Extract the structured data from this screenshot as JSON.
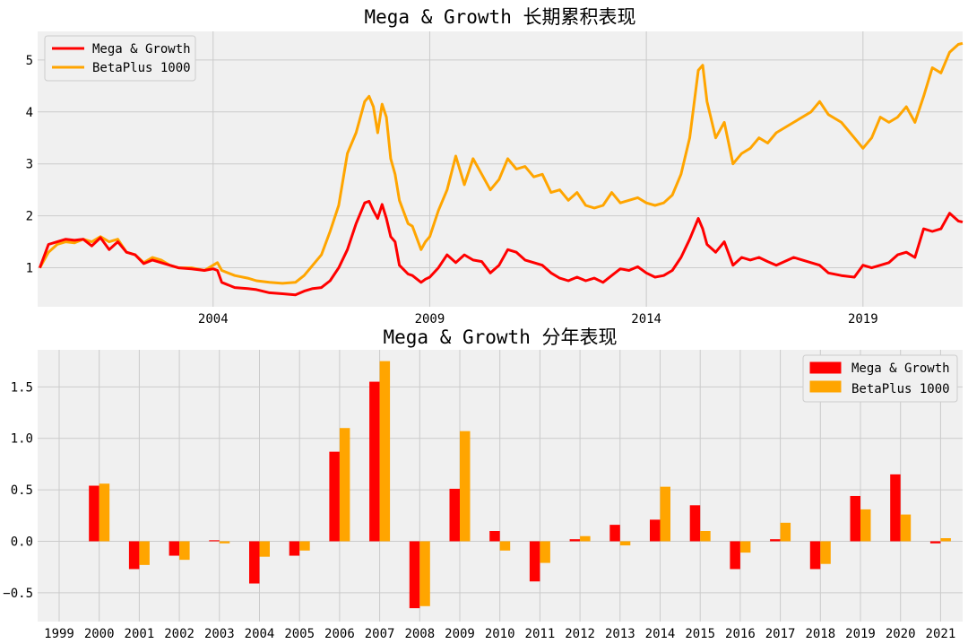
{
  "colors": {
    "mega": "#ff0000",
    "beta": "#ffa500",
    "panel": "#f0f0f0",
    "grid": "#cbcbcb"
  },
  "chart_data": [
    {
      "type": "line",
      "title": "Mega & Growth 长期累积表现",
      "xlabel": "",
      "ylabel": "",
      "xlim": [
        1999.95,
        2021.3
      ],
      "ylim": [
        0.25,
        5.55
      ],
      "xticks": [
        2004,
        2009,
        2014,
        2019
      ],
      "xtick_labels": [
        "2004",
        "2009",
        "2014",
        "2019"
      ],
      "yticks": [
        1,
        2,
        3,
        4,
        5
      ],
      "ytick_labels": [
        "1",
        "2",
        "3",
        "4",
        "5"
      ],
      "grid": true,
      "legend": "top-left",
      "series": [
        {
          "name": "Mega & Growth",
          "color": "#ff0000",
          "x": [
            2000.0,
            2000.2,
            2000.4,
            2000.6,
            2000.8,
            2001.0,
            2001.2,
            2001.4,
            2001.6,
            2001.8,
            2002.0,
            2002.2,
            2002.4,
            2002.6,
            2002.8,
            2003.0,
            2003.2,
            2003.5,
            2003.8,
            2004.0,
            2004.1,
            2004.2,
            2004.5,
            2004.8,
            2005.0,
            2005.3,
            2005.6,
            2005.9,
            2006.1,
            2006.3,
            2006.5,
            2006.7,
            2006.9,
            2007.1,
            2007.3,
            2007.5,
            2007.6,
            2007.7,
            2007.8,
            2007.9,
            2008.0,
            2008.1,
            2008.2,
            2008.3,
            2008.5,
            2008.6,
            2008.8,
            2008.9,
            2009.0,
            2009.2,
            2009.4,
            2009.6,
            2009.8,
            2010.0,
            2010.2,
            2010.4,
            2010.6,
            2010.8,
            2011.0,
            2011.2,
            2011.4,
            2011.6,
            2011.8,
            2012.0,
            2012.2,
            2012.4,
            2012.6,
            2012.8,
            2013.0,
            2013.2,
            2013.4,
            2013.6,
            2013.8,
            2014.0,
            2014.2,
            2014.4,
            2014.6,
            2014.8,
            2015.0,
            2015.2,
            2015.3,
            2015.4,
            2015.6,
            2015.8,
            2016.0,
            2016.2,
            2016.4,
            2016.6,
            2016.8,
            2017.0,
            2017.4,
            2017.8,
            2018.0,
            2018.2,
            2018.5,
            2018.8,
            2019.0,
            2019.2,
            2019.4,
            2019.6,
            2019.8,
            2020.0,
            2020.2,
            2020.4,
            2020.6,
            2020.8,
            2021.0,
            2021.2,
            2021.3
          ],
          "y": [
            1.0,
            1.45,
            1.5,
            1.55,
            1.53,
            1.55,
            1.42,
            1.58,
            1.35,
            1.5,
            1.3,
            1.25,
            1.08,
            1.15,
            1.1,
            1.05,
            1.0,
            0.98,
            0.95,
            0.98,
            0.95,
            0.72,
            0.62,
            0.6,
            0.58,
            0.52,
            0.5,
            0.48,
            0.55,
            0.6,
            0.62,
            0.75,
            1.0,
            1.35,
            1.85,
            2.25,
            2.28,
            2.1,
            1.95,
            2.22,
            1.95,
            1.6,
            1.5,
            1.05,
            0.88,
            0.85,
            0.72,
            0.78,
            0.82,
            1.0,
            1.25,
            1.1,
            1.25,
            1.15,
            1.12,
            0.9,
            1.05,
            1.35,
            1.3,
            1.15,
            1.1,
            1.05,
            0.9,
            0.8,
            0.75,
            0.82,
            0.75,
            0.8,
            0.72,
            0.85,
            0.98,
            0.95,
            1.02,
            0.9,
            0.82,
            0.85,
            0.95,
            1.2,
            1.55,
            1.95,
            1.75,
            1.45,
            1.3,
            1.5,
            1.05,
            1.2,
            1.15,
            1.2,
            1.12,
            1.05,
            1.2,
            1.1,
            1.05,
            0.9,
            0.85,
            0.82,
            1.05,
            1.0,
            1.05,
            1.1,
            1.25,
            1.3,
            1.2,
            1.75,
            1.7,
            1.75,
            2.05,
            1.9,
            1.88
          ]
        },
        {
          "name": "BetaPlus 1000",
          "color": "#ffa500",
          "x": [
            2000.0,
            2000.2,
            2000.4,
            2000.6,
            2000.8,
            2001.0,
            2001.2,
            2001.4,
            2001.6,
            2001.8,
            2002.0,
            2002.2,
            2002.4,
            2002.6,
            2002.8,
            2003.0,
            2003.2,
            2003.5,
            2003.8,
            2004.0,
            2004.1,
            2004.2,
            2004.5,
            2004.8,
            2005.0,
            2005.3,
            2005.6,
            2005.9,
            2006.1,
            2006.3,
            2006.5,
            2006.7,
            2006.9,
            2007.1,
            2007.3,
            2007.5,
            2007.6,
            2007.7,
            2007.8,
            2007.9,
            2008.0,
            2008.1,
            2008.2,
            2008.3,
            2008.5,
            2008.6,
            2008.8,
            2008.9,
            2009.0,
            2009.2,
            2009.4,
            2009.6,
            2009.8,
            2010.0,
            2010.2,
            2010.4,
            2010.6,
            2010.8,
            2011.0,
            2011.2,
            2011.4,
            2011.6,
            2011.8,
            2012.0,
            2012.2,
            2012.4,
            2012.6,
            2012.8,
            2013.0,
            2013.2,
            2013.4,
            2013.6,
            2013.8,
            2014.0,
            2014.2,
            2014.4,
            2014.6,
            2014.8,
            2015.0,
            2015.2,
            2015.3,
            2015.4,
            2015.6,
            2015.8,
            2016.0,
            2016.2,
            2016.4,
            2016.6,
            2016.8,
            2017.0,
            2017.4,
            2017.8,
            2018.0,
            2018.2,
            2018.5,
            2018.8,
            2019.0,
            2019.2,
            2019.4,
            2019.6,
            2019.8,
            2020.0,
            2020.2,
            2020.4,
            2020.6,
            2020.8,
            2021.0,
            2021.2,
            2021.3
          ],
          "y": [
            1.0,
            1.3,
            1.45,
            1.5,
            1.48,
            1.55,
            1.5,
            1.6,
            1.5,
            1.55,
            1.3,
            1.25,
            1.1,
            1.2,
            1.15,
            1.05,
            1.0,
            1.0,
            0.95,
            1.05,
            1.1,
            0.95,
            0.85,
            0.8,
            0.75,
            0.72,
            0.7,
            0.72,
            0.85,
            1.05,
            1.25,
            1.7,
            2.2,
            3.2,
            3.6,
            4.2,
            4.3,
            4.1,
            3.6,
            4.15,
            3.9,
            3.1,
            2.8,
            2.3,
            1.85,
            1.8,
            1.35,
            1.5,
            1.6,
            2.1,
            2.5,
            3.15,
            2.6,
            3.1,
            2.8,
            2.5,
            2.7,
            3.1,
            2.9,
            2.95,
            2.75,
            2.8,
            2.45,
            2.5,
            2.3,
            2.45,
            2.2,
            2.15,
            2.2,
            2.45,
            2.25,
            2.3,
            2.35,
            2.25,
            2.2,
            2.25,
            2.4,
            2.8,
            3.5,
            4.8,
            4.9,
            4.2,
            3.5,
            3.8,
            3.0,
            3.2,
            3.3,
            3.5,
            3.4,
            3.6,
            3.8,
            4.0,
            4.2,
            3.95,
            3.8,
            3.5,
            3.3,
            3.5,
            3.9,
            3.8,
            3.9,
            4.1,
            3.8,
            4.3,
            4.85,
            4.75,
            5.15,
            5.3,
            5.32
          ]
        }
      ]
    },
    {
      "type": "bar",
      "title": "Mega & Growth 分年表现",
      "xlabel": "",
      "ylabel": "",
      "categories": [
        "1999",
        "2000",
        "2001",
        "2002",
        "2003",
        "2004",
        "2005",
        "2006",
        "2007",
        "2008",
        "2009",
        "2010",
        "2011",
        "2012",
        "2013",
        "2014",
        "2015",
        "2016",
        "2017",
        "2018",
        "2019",
        "2020",
        "2021"
      ],
      "ylim": [
        -0.78,
        1.86
      ],
      "yticks": [
        -0.5,
        0,
        0.5,
        1,
        1.5
      ],
      "ytick_labels": [
        "−0.5",
        "0.0",
        "0.5",
        "1.0",
        "1.5"
      ],
      "grid": true,
      "legend": "top-right",
      "series": [
        {
          "name": "Mega & Growth",
          "color": "#ff0000",
          "values": [
            0,
            0.54,
            -0.27,
            -0.14,
            0.01,
            -0.41,
            -0.14,
            0.87,
            1.55,
            -0.65,
            0.51,
            0.1,
            -0.39,
            0.02,
            0.16,
            0.21,
            0.35,
            -0.27,
            0.02,
            -0.27,
            0.44,
            0.65,
            -0.02
          ]
        },
        {
          "name": "BetaPlus 1000",
          "color": "#ffa500",
          "values": [
            0,
            0.56,
            -0.23,
            -0.18,
            -0.02,
            -0.15,
            -0.09,
            1.1,
            1.75,
            -0.63,
            1.07,
            -0.09,
            -0.21,
            0.05,
            -0.04,
            0.53,
            0.1,
            -0.11,
            0.18,
            -0.22,
            0.31,
            0.26,
            0.03
          ]
        }
      ]
    }
  ]
}
